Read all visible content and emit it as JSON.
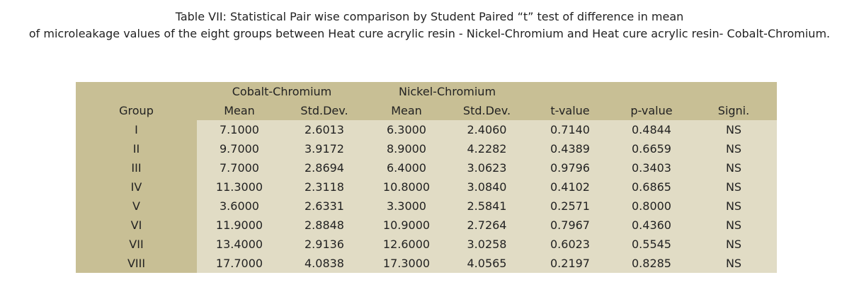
{
  "header": {
    "title_lines": [
      "Table VII: Statistical Pair wise comparison by Student Paired “t” test of difference in mean",
      "of microleakage values of the eight groups between Heat cure acrylic resin - Nickel-Chromium and Heat cure acrylic resin- Cobalt-Chromium."
    ]
  },
  "table": {
    "group_header": "Group",
    "spanning": [
      "Cobalt-Chromium",
      "Nickel-Chromium"
    ],
    "columns": [
      "Mean",
      "Std.Dev.",
      "Mean",
      "Std.Dev.",
      "t-value",
      "p-value",
      "Signi."
    ],
    "rows": [
      [
        "I",
        "7.1000",
        "2.6013",
        "6.3000",
        "2.4060",
        "0.7140",
        "0.4844",
        "NS"
      ],
      [
        "II",
        "9.7000",
        "3.9172",
        "8.9000",
        "4.2282",
        "0.4389",
        "0.6659",
        "NS"
      ],
      [
        "III",
        "7.7000",
        "2.8694",
        "6.4000",
        "3.0623",
        "0.9796",
        "0.3403",
        "NS"
      ],
      [
        "IV",
        "11.3000",
        "2.3118",
        "10.8000",
        "3.0840",
        "0.4102",
        "0.6865",
        "NS"
      ],
      [
        "V",
        "3.6000",
        "2.6331",
        "3.3000",
        "2.5841",
        "0.2571",
        "0.8000",
        "NS"
      ],
      [
        "VI",
        "11.9000",
        "2.8848",
        "10.9000",
        "2.7264",
        "0.7967",
        "0.4360",
        "NS"
      ],
      [
        "VII",
        "13.4000",
        "2.9136",
        "12.6000",
        "3.0258",
        "0.6023",
        "0.5545",
        "NS"
      ],
      [
        "VIII",
        "17.7000",
        "4.0838",
        "17.3000",
        "4.0565",
        "0.2197",
        "0.8285",
        "NS"
      ]
    ]
  }
}
